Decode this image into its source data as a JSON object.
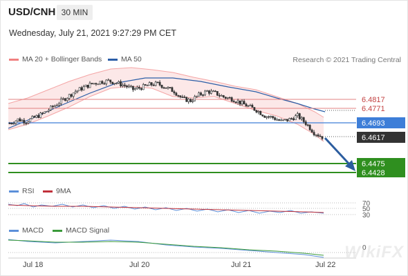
{
  "header": {
    "symbol": "USD/CNH",
    "timeframe": "30 MIN",
    "datetime": "Wednesday, July 21, 2021 9:27:29 PM CET"
  },
  "legend": {
    "bollinger_label": "MA 20 + Bollinger Bands",
    "ma50_label": "MA 50",
    "rsi_label": "RSI",
    "rsi_ma_label": "9MA",
    "macd_label": "MACD",
    "macd_signal_label": "MACD Signal"
  },
  "credit": "Research © 2021 Trading Central",
  "watermark": "WikiFX",
  "colors": {
    "bollinger": "#f08080",
    "ma50": "#2b5ea7",
    "rsi": "#5b8fd9",
    "rsi_ma": "#c0303a",
    "macd": "#5b8fd9",
    "macd_signal": "#3a9a3a",
    "resistance": "#e08080",
    "pivot": "#3d7ed8",
    "support": "#2f8f1f",
    "arrow": "#2c5d9f"
  },
  "chart_data": {
    "type": "candlestick",
    "x_ticks": [
      "Jul 18",
      "Jul 20",
      "Jul 21",
      "Jul 22"
    ],
    "levels": {
      "resistance": [
        "6.4817",
        "6.4771"
      ],
      "pivot": "6.4693",
      "last": "6.4617",
      "support": [
        "6.4475",
        "6.4428"
      ]
    },
    "price_path": [
      6.469,
      6.471,
      6.47,
      6.472,
      6.474,
      6.477,
      6.48,
      6.483,
      6.486,
      6.488,
      6.49,
      6.491,
      6.4915,
      6.4905,
      6.489,
      6.487,
      6.488,
      6.4895,
      6.49,
      6.488,
      6.486,
      6.482,
      6.481,
      6.484,
      6.486,
      6.485,
      6.483,
      6.482,
      6.48,
      6.478,
      6.476,
      6.473,
      6.472,
      6.47,
      6.471,
      6.473,
      6.469,
      6.464,
      6.4617
    ],
    "rsi_ticks": [
      "70",
      "50",
      "30"
    ],
    "macd_ticks": [
      "0"
    ]
  }
}
